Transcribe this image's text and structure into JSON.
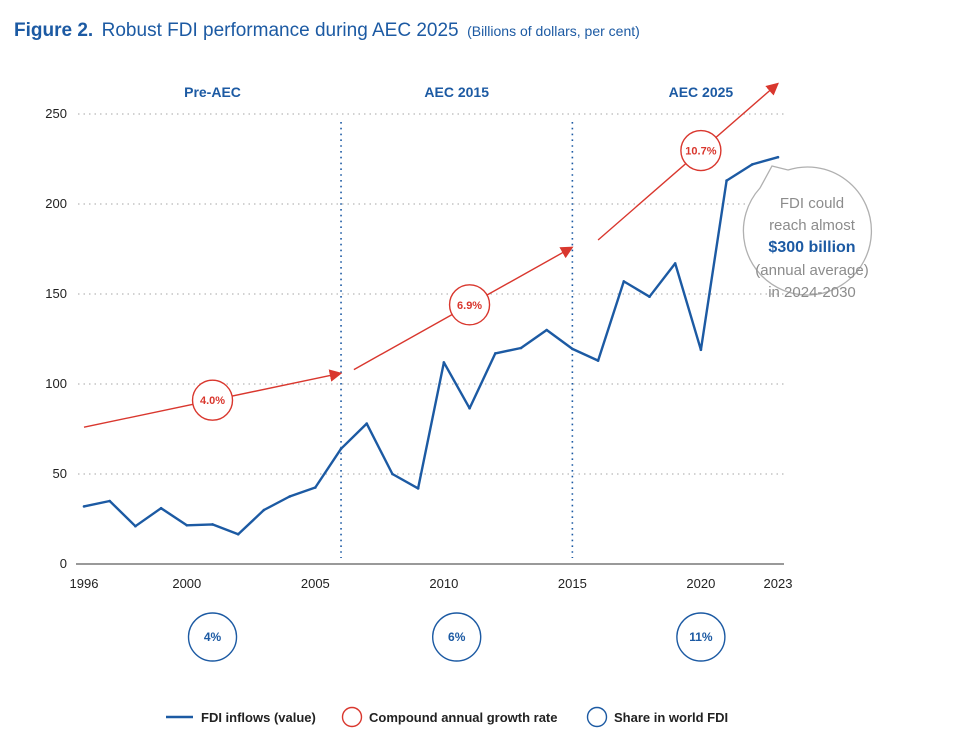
{
  "title": {
    "figure_label": "Figure 2.",
    "main": "Robust FDI performance during AEC 2025",
    "sub": "(Billions of dollars, per cent)"
  },
  "chart_data": {
    "type": "line",
    "x": [
      1996,
      1997,
      1998,
      1999,
      2000,
      2001,
      2002,
      2003,
      2004,
      2005,
      2006,
      2007,
      2008,
      2009,
      2010,
      2011,
      2012,
      2013,
      2014,
      2015,
      2016,
      2017,
      2018,
      2019,
      2020,
      2021,
      2022,
      2023
    ],
    "series": [
      {
        "name": "FDI inflows (value)",
        "color": "#1c5aa3",
        "values": [
          32,
          35,
          21,
          31,
          21.5,
          22,
          16.5,
          30,
          37.5,
          42.5,
          64,
          78,
          50,
          42,
          112,
          86.5,
          117,
          120,
          130,
          119.5,
          113,
          157,
          148.5,
          167,
          119,
          213,
          222,
          226
        ]
      }
    ],
    "xlim": [
      1996,
      2023
    ],
    "ylim": [
      0,
      250
    ],
    "yticks": [
      0,
      50,
      100,
      150,
      200,
      250
    ],
    "xticks": [
      1996,
      2000,
      2005,
      2010,
      2015,
      2020,
      2023
    ],
    "grid": "horizontal-dotted",
    "period_dividers": [
      2006,
      2015
    ],
    "periods": [
      {
        "label": "Pre-AEC",
        "center_year": 2001
      },
      {
        "label": "AEC 2015",
        "center_year": 2010.5
      },
      {
        "label": "AEC 2025",
        "center_year": 2020
      }
    ],
    "growth_trend": [
      {
        "from": [
          1996,
          76
        ],
        "to": [
          2006,
          106
        ],
        "rate": "4.0%",
        "rate_at_year": 2001
      },
      {
        "from": [
          2006.5,
          108
        ],
        "to": [
          2015,
          176
        ],
        "rate": "6.9%",
        "rate_at_year": 2011
      },
      {
        "from": [
          2016,
          180
        ],
        "to": [
          2023,
          267
        ],
        "rate": "10.7%",
        "rate_at_year": 2020
      }
    ],
    "world_share": [
      {
        "value": "4%",
        "center_year": 2001
      },
      {
        "value": "6%",
        "center_year": 2010.5
      },
      {
        "value": "11%",
        "center_year": 2020
      }
    ],
    "callout": {
      "line1": "FDI could",
      "line2": "reach almost",
      "line3": "$300 billion",
      "line4": "(annual average)",
      "line5": "in 2024-2030"
    },
    "legend": [
      {
        "label": "FDI inflows (value)",
        "symbol": "line",
        "color": "#1c5aa3"
      },
      {
        "label": "Compound annual growth rate",
        "symbol": "circle",
        "color": "#d9372e"
      },
      {
        "label": "Share in world FDI",
        "symbol": "circle",
        "color": "#1c5aa3"
      }
    ],
    "colors": {
      "fdi": "#1c5aa3",
      "growth": "#d9372e",
      "grid": "#b8b8b8",
      "callout_border": "#b0b0b0"
    }
  }
}
